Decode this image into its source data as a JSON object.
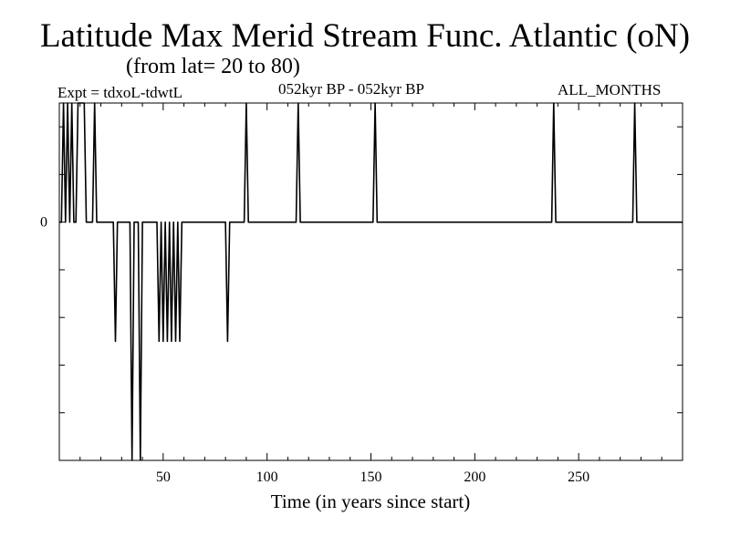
{
  "header": {
    "title": "Latitude Max Merid Stream Func. Atlantic (oN)",
    "subtitle": "(from lat= 20 to 80)",
    "expt": "Expt = tdxoL-tdwtL",
    "period": "052kyr BP - 052kyr BP",
    "months": "ALL_MONTHS"
  },
  "chart_data": {
    "type": "line",
    "title": "Latitude Max Merid Stream Func. Atlantic (oN)",
    "xlabel": "Time (in years since start)",
    "ylabel": "",
    "xlim": [
      0,
      300
    ],
    "ylim": [
      -2.5,
      1.25
    ],
    "x_ticks": [
      50,
      100,
      150,
      200,
      250
    ],
    "y_ticks": [
      0
    ],
    "y_tick_labels": [
      "0"
    ],
    "grid": false,
    "series": [
      {
        "x": [
          0,
          1,
          2,
          3,
          4,
          5,
          6,
          7,
          8,
          9,
          10,
          11,
          12,
          13,
          14,
          15,
          16,
          17,
          18,
          19,
          20,
          26,
          27,
          28,
          34,
          35,
          36,
          37,
          38,
          39,
          40,
          47,
          48,
          49,
          50,
          51,
          52,
          53,
          54,
          55,
          56,
          57,
          58,
          59,
          60,
          80,
          81,
          82,
          89,
          90,
          91,
          114,
          115,
          116,
          151,
          152,
          153,
          237,
          238,
          239,
          276,
          277,
          278,
          300
        ],
        "y": [
          0,
          0,
          1.25,
          0,
          1.25,
          0,
          1.25,
          0,
          0,
          1.25,
          1.25,
          1.25,
          1.25,
          0,
          0,
          0,
          0,
          1.25,
          0,
          0,
          0,
          0,
          -1.25,
          0,
          0,
          -2.5,
          0,
          0,
          0,
          -2.5,
          0,
          0,
          -1.25,
          0,
          -1.25,
          0,
          -1.25,
          0,
          -1.25,
          0,
          -1.25,
          0,
          -1.25,
          0,
          0,
          0,
          -1.25,
          0,
          0,
          1.25,
          0,
          0,
          1.25,
          0,
          0,
          1.25,
          0,
          0,
          1.25,
          0,
          0,
          1.25,
          0,
          0
        ]
      }
    ]
  }
}
